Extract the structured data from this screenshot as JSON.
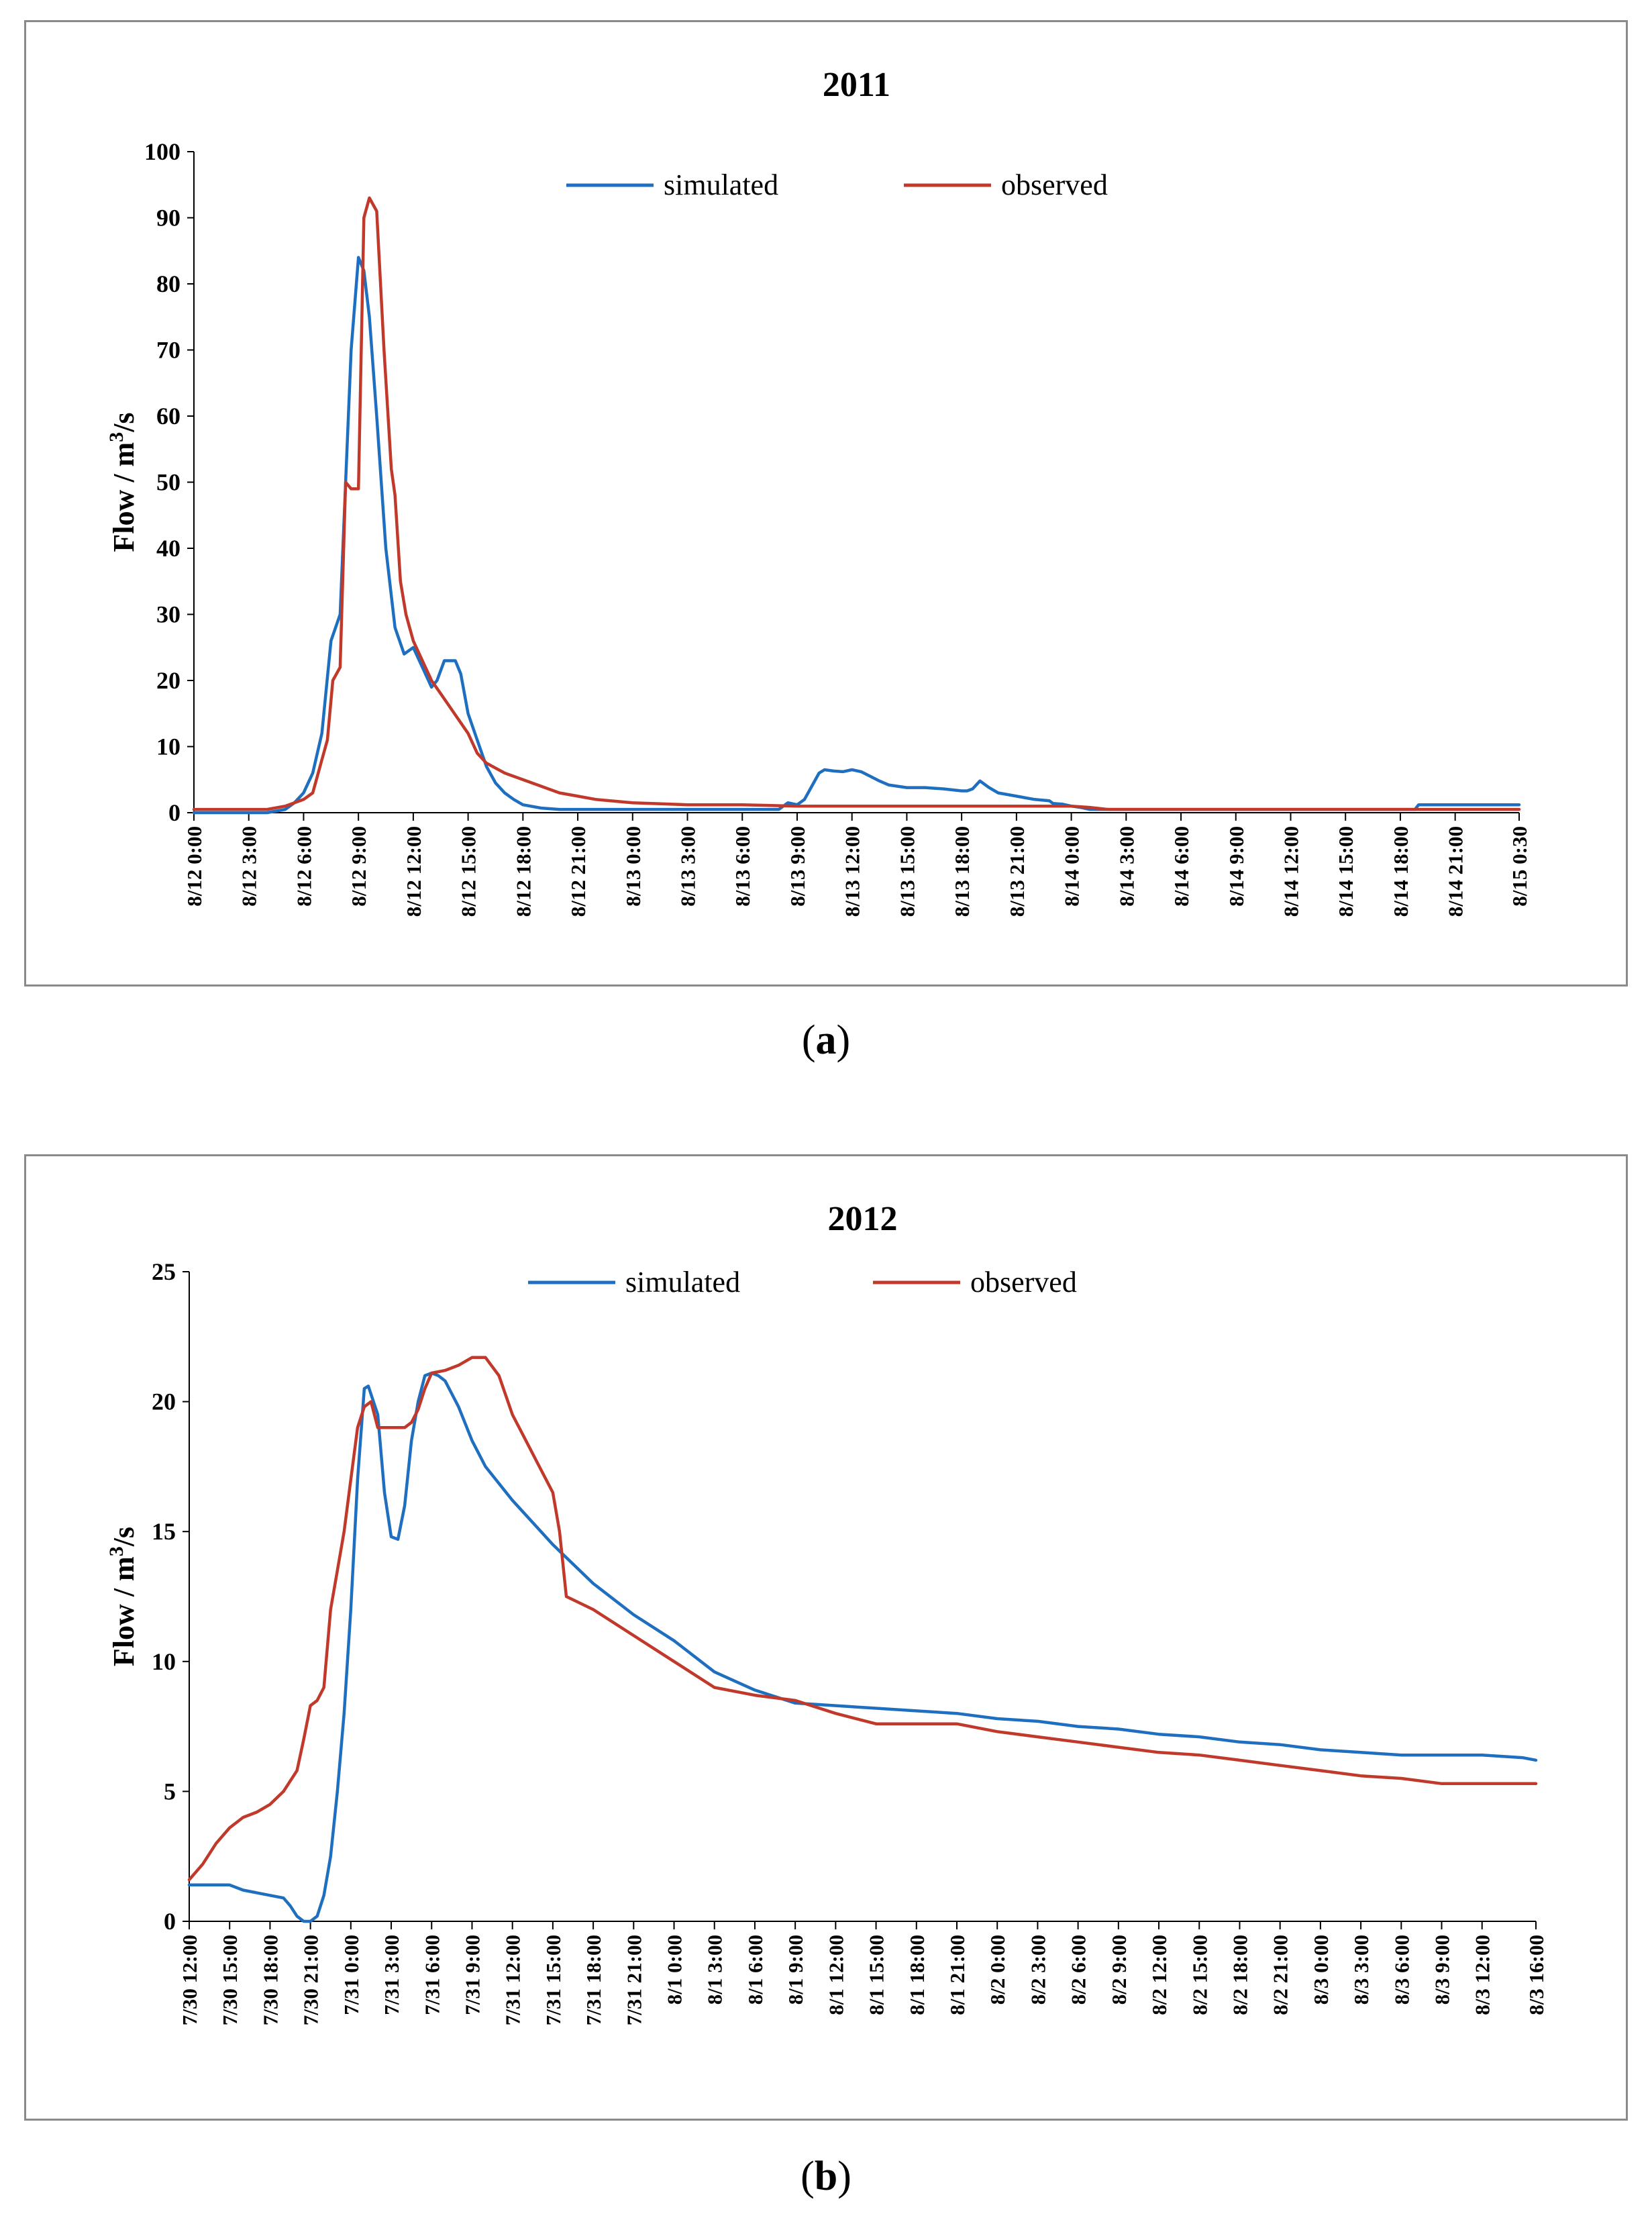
{
  "captions": {
    "a_prefix": "(",
    "a_letter": "a",
    "a_suffix": ")",
    "b_prefix": "(",
    "b_letter": "b",
    "b_suffix": ")"
  },
  "colors": {
    "simulated": "#1f6fc0",
    "observed": "#c0392b",
    "axis": "#000000",
    "frame": "#8a8a8a"
  },
  "chart_data": [
    {
      "type": "line",
      "title": "2011",
      "ylabel_prefix": "Flow / m",
      "ylabel_sup": "3",
      "ylabel_suffix": "/s",
      "ylim": [
        0,
        100
      ],
      "yticks": [
        "0",
        "10",
        "20",
        "30",
        "40",
        "50",
        "60",
        "70",
        "80",
        "90",
        "100"
      ],
      "xlim_hours": [
        0,
        72.5
      ],
      "xtick_hours": [
        0,
        3,
        6,
        9,
        12,
        15,
        18,
        21,
        24,
        27,
        30,
        33,
        36,
        39,
        42,
        45,
        48,
        51,
        54,
        57,
        60,
        63,
        66,
        69,
        72.5
      ],
      "xtick_labels": [
        "8/12 0:00",
        "8/12 3:00",
        "8/12 6:00",
        "8/12 9:00",
        "8/12 12:00",
        "8/12 15:00",
        "8/12 18:00",
        "8/12 21:00",
        "8/13 0:00",
        "8/13 3:00",
        "8/13 6:00",
        "8/13 9:00",
        "8/13 12:00",
        "8/13 15:00",
        "8/13 18:00",
        "8/13 21:00",
        "8/14 0:00",
        "8/14 3:00",
        "8/14 6:00",
        "8/14 9:00",
        "8/14 12:00",
        "8/14 15:00",
        "8/14 18:00",
        "8/14 21:00",
        "8/15 0:30"
      ],
      "legend": [
        "simulated",
        "observed"
      ],
      "series": [
        {
          "name": "simulated",
          "x": [
            0,
            4,
            5,
            5.5,
            6,
            6.5,
            7,
            7.5,
            8,
            8.3,
            8.6,
            9,
            9.3,
            9.6,
            10,
            10.5,
            11,
            11.5,
            12,
            12.5,
            13,
            13.3,
            13.7,
            14.3,
            14.6,
            15,
            15.5,
            16,
            16.5,
            17,
            17.5,
            18,
            19,
            20,
            22,
            24,
            27,
            30,
            32,
            32.5,
            33,
            33.4,
            33.8,
            34.2,
            34.5,
            35,
            35.5,
            36,
            36.5,
            37,
            37.5,
            38,
            38.5,
            39,
            40,
            41,
            42,
            42.3,
            42.6,
            43,
            43.5,
            44,
            45,
            46,
            46.8,
            47,
            47.5,
            48,
            48.5,
            49,
            50,
            55,
            60,
            65,
            66.8,
            67,
            68,
            70,
            72.5
          ],
          "y": [
            0,
            0,
            0.5,
            1.5,
            3,
            6,
            12,
            26,
            30,
            50,
            70,
            84,
            82,
            75,
            60,
            40,
            28,
            24,
            25,
            22,
            19,
            20,
            23,
            23,
            21,
            15,
            11,
            7,
            4.5,
            3,
            2,
            1.2,
            0.7,
            0.5,
            0.5,
            0.5,
            0.5,
            0.5,
            0.5,
            1.5,
            1.2,
            2,
            4,
            6,
            6.5,
            6.3,
            6.2,
            6.5,
            6.2,
            5.5,
            4.8,
            4.2,
            4,
            3.8,
            3.8,
            3.6,
            3.3,
            3.3,
            3.6,
            4.8,
            3.8,
            3,
            2.5,
            2,
            1.8,
            1.4,
            1.3,
            1,
            0.8,
            0.5,
            0.5,
            0.5,
            0.5,
            0.5,
            0.5,
            1.2,
            1.2,
            1.2,
            1.2
          ]
        },
        {
          "name": "observed",
          "x": [
            0,
            1,
            4,
            5,
            6,
            6.5,
            7,
            7.3,
            7.6,
            8,
            8.3,
            8.6,
            9,
            9.3,
            9.6,
            10,
            10.4,
            10.8,
            11,
            11.3,
            11.6,
            12,
            12.5,
            13,
            13.5,
            14,
            14.5,
            15,
            15.5,
            16,
            17,
            18,
            19,
            20,
            21,
            22,
            24,
            27,
            30,
            33,
            36,
            40,
            45,
            48,
            49,
            50,
            55,
            60,
            65,
            70,
            72.5
          ],
          "y": [
            0.5,
            0.5,
            0.5,
            1,
            2,
            3,
            8,
            11,
            20,
            22,
            50,
            49,
            49,
            90,
            93,
            91,
            70,
            52,
            48,
            35,
            30,
            26,
            23,
            20,
            18,
            16,
            14,
            12,
            9,
            7.5,
            6,
            5,
            4,
            3,
            2.5,
            2,
            1.5,
            1.2,
            1.2,
            1,
            1,
            1,
            1,
            1,
            0.8,
            0.5,
            0.5,
            0.5,
            0.5,
            0.5,
            0.5
          ]
        }
      ]
    },
    {
      "type": "line",
      "title": "2012",
      "ylabel_prefix": "Flow / m",
      "ylabel_sup": "3",
      "ylabel_suffix": "/s",
      "ylim": [
        0,
        25
      ],
      "yticks": [
        "0",
        "5",
        "10",
        "15",
        "20",
        "25"
      ],
      "xlim_hours": [
        0,
        100
      ],
      "xtick_hours": [
        0,
        3,
        6,
        9,
        12,
        15,
        18,
        21,
        24,
        27,
        30,
        33,
        36,
        39,
        42,
        45,
        48,
        51,
        54,
        57,
        60,
        63,
        66,
        69,
        72,
        75,
        78,
        81,
        84,
        87,
        90,
        93,
        96,
        100
      ],
      "xtick_labels": [
        "7/30 12:00",
        "7/30 15:00",
        "7/30 18:00",
        "7/30 21:00",
        "7/31 0:00",
        "7/31 3:00",
        "7/31 6:00",
        "7/31 9:00",
        "7/31 12:00",
        "7/31 15:00",
        "7/31 18:00",
        "7/31 21:00",
        "8/1 0:00",
        "8/1 3:00",
        "8/1 6:00",
        "8/1 9:00",
        "8/1 12:00",
        "8/1 15:00",
        "8/1 18:00",
        "8/1 21:00",
        "8/2 0:00",
        "8/2 3:00",
        "8/2 6:00",
        "8/2 9:00",
        "8/2 12:00",
        "8/2 15:00",
        "8/2 18:00",
        "8/2 21:00",
        "8/3 0:00",
        "8/3 3:00",
        "8/3 6:00",
        "8/3 9:00",
        "8/3 12:00",
        "8/3 16:00"
      ],
      "legend": [
        "simulated",
        "observed"
      ],
      "series": [
        {
          "name": "simulated",
          "x": [
            0,
            3,
            4,
            5,
            6,
            7,
            7.5,
            8,
            8.5,
            9,
            9.5,
            10,
            10.5,
            11,
            11.5,
            12,
            12.5,
            13,
            13.3,
            14,
            14.5,
            15,
            15.5,
            16,
            16.5,
            17,
            17.5,
            18,
            18.5,
            19,
            19.5,
            20,
            21,
            22,
            24,
            27,
            30,
            33,
            36,
            39,
            42,
            45,
            48,
            51,
            54,
            57,
            60,
            63,
            66,
            69,
            72,
            75,
            78,
            81,
            84,
            87,
            90,
            93,
            96,
            99,
            100
          ],
          "y": [
            1.4,
            1.4,
            1.2,
            1.1,
            1.0,
            0.9,
            0.6,
            0.2,
            0,
            0,
            0.2,
            1.0,
            2.5,
            5.0,
            8.0,
            12.0,
            17.0,
            20.5,
            20.6,
            19.5,
            16.5,
            14.8,
            14.7,
            16.0,
            18.5,
            20.0,
            21.0,
            21.1,
            21.0,
            20.8,
            20.3,
            19.8,
            18.5,
            17.5,
            16.2,
            14.5,
            13.0,
            11.8,
            10.8,
            9.6,
            8.9,
            8.4,
            8.3,
            8.2,
            8.1,
            8.0,
            7.8,
            7.7,
            7.5,
            7.4,
            7.2,
            7.1,
            6.9,
            6.8,
            6.6,
            6.5,
            6.4,
            6.4,
            6.4,
            6.3,
            6.2
          ]
        },
        {
          "name": "observed",
          "x": [
            0,
            1,
            2,
            3,
            4,
            5,
            6,
            7,
            8,
            8.5,
            9,
            9.5,
            10,
            10.5,
            11,
            11.5,
            12,
            12.5,
            13,
            13.5,
            14,
            15,
            16,
            16.5,
            17,
            17.5,
            18,
            19,
            20,
            21,
            22,
            23,
            24,
            25,
            26,
            26.5,
            27,
            27.5,
            28,
            30,
            33,
            36,
            39,
            42,
            45,
            48,
            51,
            54,
            57,
            60,
            63,
            66,
            69,
            72,
            75,
            78,
            81,
            84,
            87,
            90,
            93,
            94,
            96,
            100
          ],
          "y": [
            1.6,
            2.2,
            3.0,
            3.6,
            4.0,
            4.2,
            4.5,
            5.0,
            5.8,
            7.0,
            8.3,
            8.5,
            9.0,
            12.0,
            13.5,
            15.0,
            17.0,
            19.0,
            19.8,
            20.0,
            19.0,
            19.0,
            19.0,
            19.2,
            19.7,
            20.5,
            21.1,
            21.2,
            21.4,
            21.7,
            21.7,
            21.0,
            19.5,
            18.5,
            17.5,
            17.0,
            16.5,
            15.0,
            12.5,
            12.0,
            11.0,
            10.0,
            9.0,
            8.7,
            8.5,
            8.0,
            7.6,
            7.6,
            7.6,
            7.3,
            7.1,
            6.9,
            6.7,
            6.5,
            6.4,
            6.2,
            6.0,
            5.8,
            5.6,
            5.5,
            5.3,
            5.3,
            5.3,
            5.3
          ]
        }
      ]
    }
  ]
}
